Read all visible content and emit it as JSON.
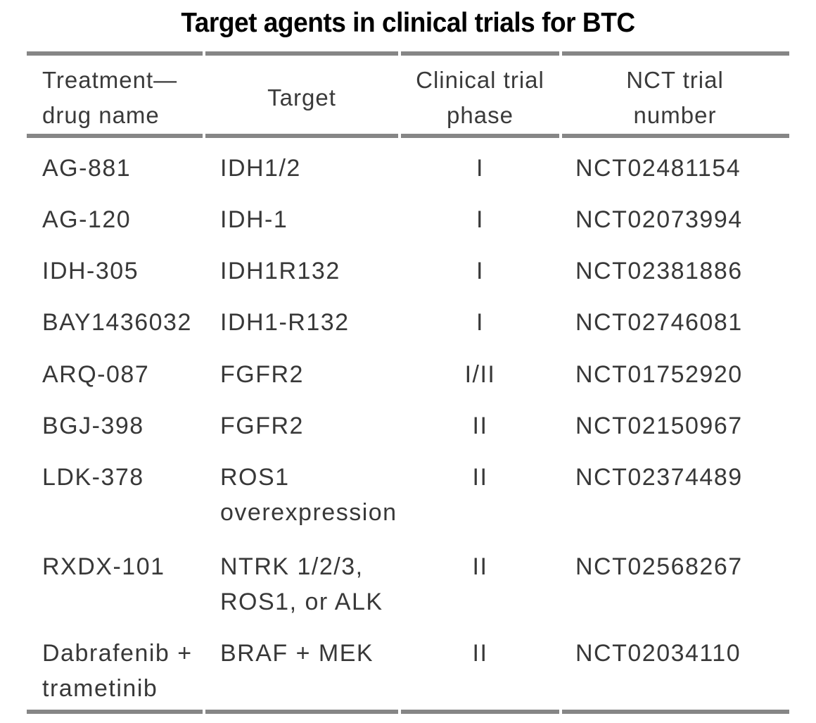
{
  "title": "Target agents in clinical trials for BTC",
  "colors": {
    "rule": "#868686",
    "body_text": "#383838",
    "title_text": "#000000",
    "background": "#ffffff"
  },
  "table": {
    "columns": [
      {
        "lines": [
          "Treatment—",
          "drug name"
        ]
      },
      {
        "lines": [
          "Target"
        ]
      },
      {
        "lines": [
          "Clinical trial",
          "phase"
        ]
      },
      {
        "lines": [
          "NCT trial",
          "number"
        ]
      }
    ],
    "rows": [
      {
        "drug": [
          "AG-881"
        ],
        "target": [
          "IDH1/2"
        ],
        "phase": "I",
        "nct": "NCT02481154"
      },
      {
        "drug": [
          "AG-120"
        ],
        "target": [
          "IDH-1"
        ],
        "phase": "I",
        "nct": "NCT02073994"
      },
      {
        "drug": [
          "IDH-305"
        ],
        "target": [
          "IDH1R132"
        ],
        "phase": "I",
        "nct": "NCT02381886"
      },
      {
        "drug": [
          "BAY1436032"
        ],
        "target": [
          "IDH1-R132"
        ],
        "phase": "I",
        "nct": "NCT02746081"
      },
      {
        "drug": [
          "ARQ-087"
        ],
        "target": [
          "FGFR2"
        ],
        "phase": "I/II",
        "nct": "NCT01752920"
      },
      {
        "drug": [
          "BGJ-398"
        ],
        "target": [
          "FGFR2"
        ],
        "phase": "II",
        "nct": "NCT02150967"
      },
      {
        "drug": [
          "LDK-378"
        ],
        "target": [
          "ROS1",
          "overexpression"
        ],
        "phase": "II",
        "nct": "NCT02374489"
      },
      {
        "drug": [
          "RXDX-101"
        ],
        "target": [
          "NTRK 1/2/3,",
          "ROS1, or ALK"
        ],
        "phase": "II",
        "nct": "NCT02568267"
      },
      {
        "drug": [
          "Dabrafenib +",
          "trametinib"
        ],
        "target": [
          "BRAF + MEK"
        ],
        "phase": "II",
        "nct": "NCT02034110"
      }
    ]
  }
}
